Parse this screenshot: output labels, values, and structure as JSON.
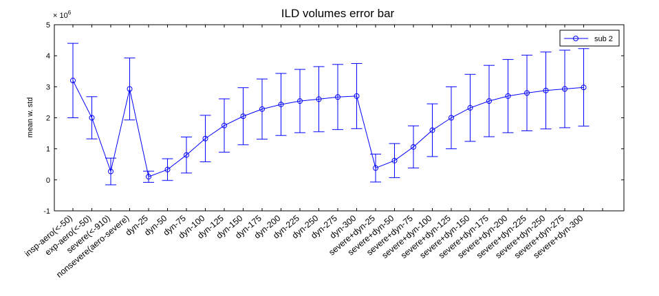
{
  "chart_data": {
    "type": "line",
    "title": "ILD volumes error bar",
    "xlabel": "",
    "ylabel": "mean w. std",
    "y_exponent_label": "× 10",
    "y_exponent_power": "6",
    "ylim": [
      -1,
      5
    ],
    "ytick_labels": [
      "-1",
      "0",
      "1",
      "2",
      "3",
      "4",
      "5"
    ],
    "grid": false,
    "legend_position": "top-right",
    "categories": [
      "insp-aero(<-50)",
      "exp-aero(<-50)",
      "severe(<-910)",
      "nonsevere(aero-severe)",
      "dyn-25",
      "dyn-50",
      "dyn-75",
      "dyn-100",
      "dyn-125",
      "dyn-150",
      "dyn-175",
      "dyn-200",
      "dyn-225",
      "dyn-250",
      "dyn-275",
      "dyn-300",
      "severe+dyn-25",
      "severe+dyn-50",
      "severe+dyn-75",
      "severe+dyn-100",
      "severe+dyn-125",
      "severe+dyn-150",
      "severe+dyn-175",
      "severe+dyn-200",
      "severe+dyn-225",
      "severe+dyn-250",
      "severe+dyn-275",
      "severe+dyn-300"
    ],
    "series": [
      {
        "name": "sub 2",
        "color": "#0000ff",
        "values": [
          3.2,
          2.0,
          0.27,
          2.93,
          0.1,
          0.33,
          0.8,
          1.33,
          1.75,
          2.05,
          2.28,
          2.43,
          2.54,
          2.6,
          2.67,
          2.7,
          0.38,
          0.62,
          1.06,
          1.6,
          2.0,
          2.32,
          2.54,
          2.7,
          2.8,
          2.88,
          2.93,
          2.98
        ],
        "errors": [
          1.2,
          0.68,
          0.43,
          1.0,
          0.18,
          0.35,
          0.58,
          0.75,
          0.86,
          0.92,
          0.97,
          1.0,
          1.02,
          1.05,
          1.05,
          1.05,
          0.45,
          0.55,
          0.68,
          0.85,
          1.0,
          1.08,
          1.15,
          1.18,
          1.22,
          1.24,
          1.25,
          1.25
        ]
      }
    ]
  }
}
